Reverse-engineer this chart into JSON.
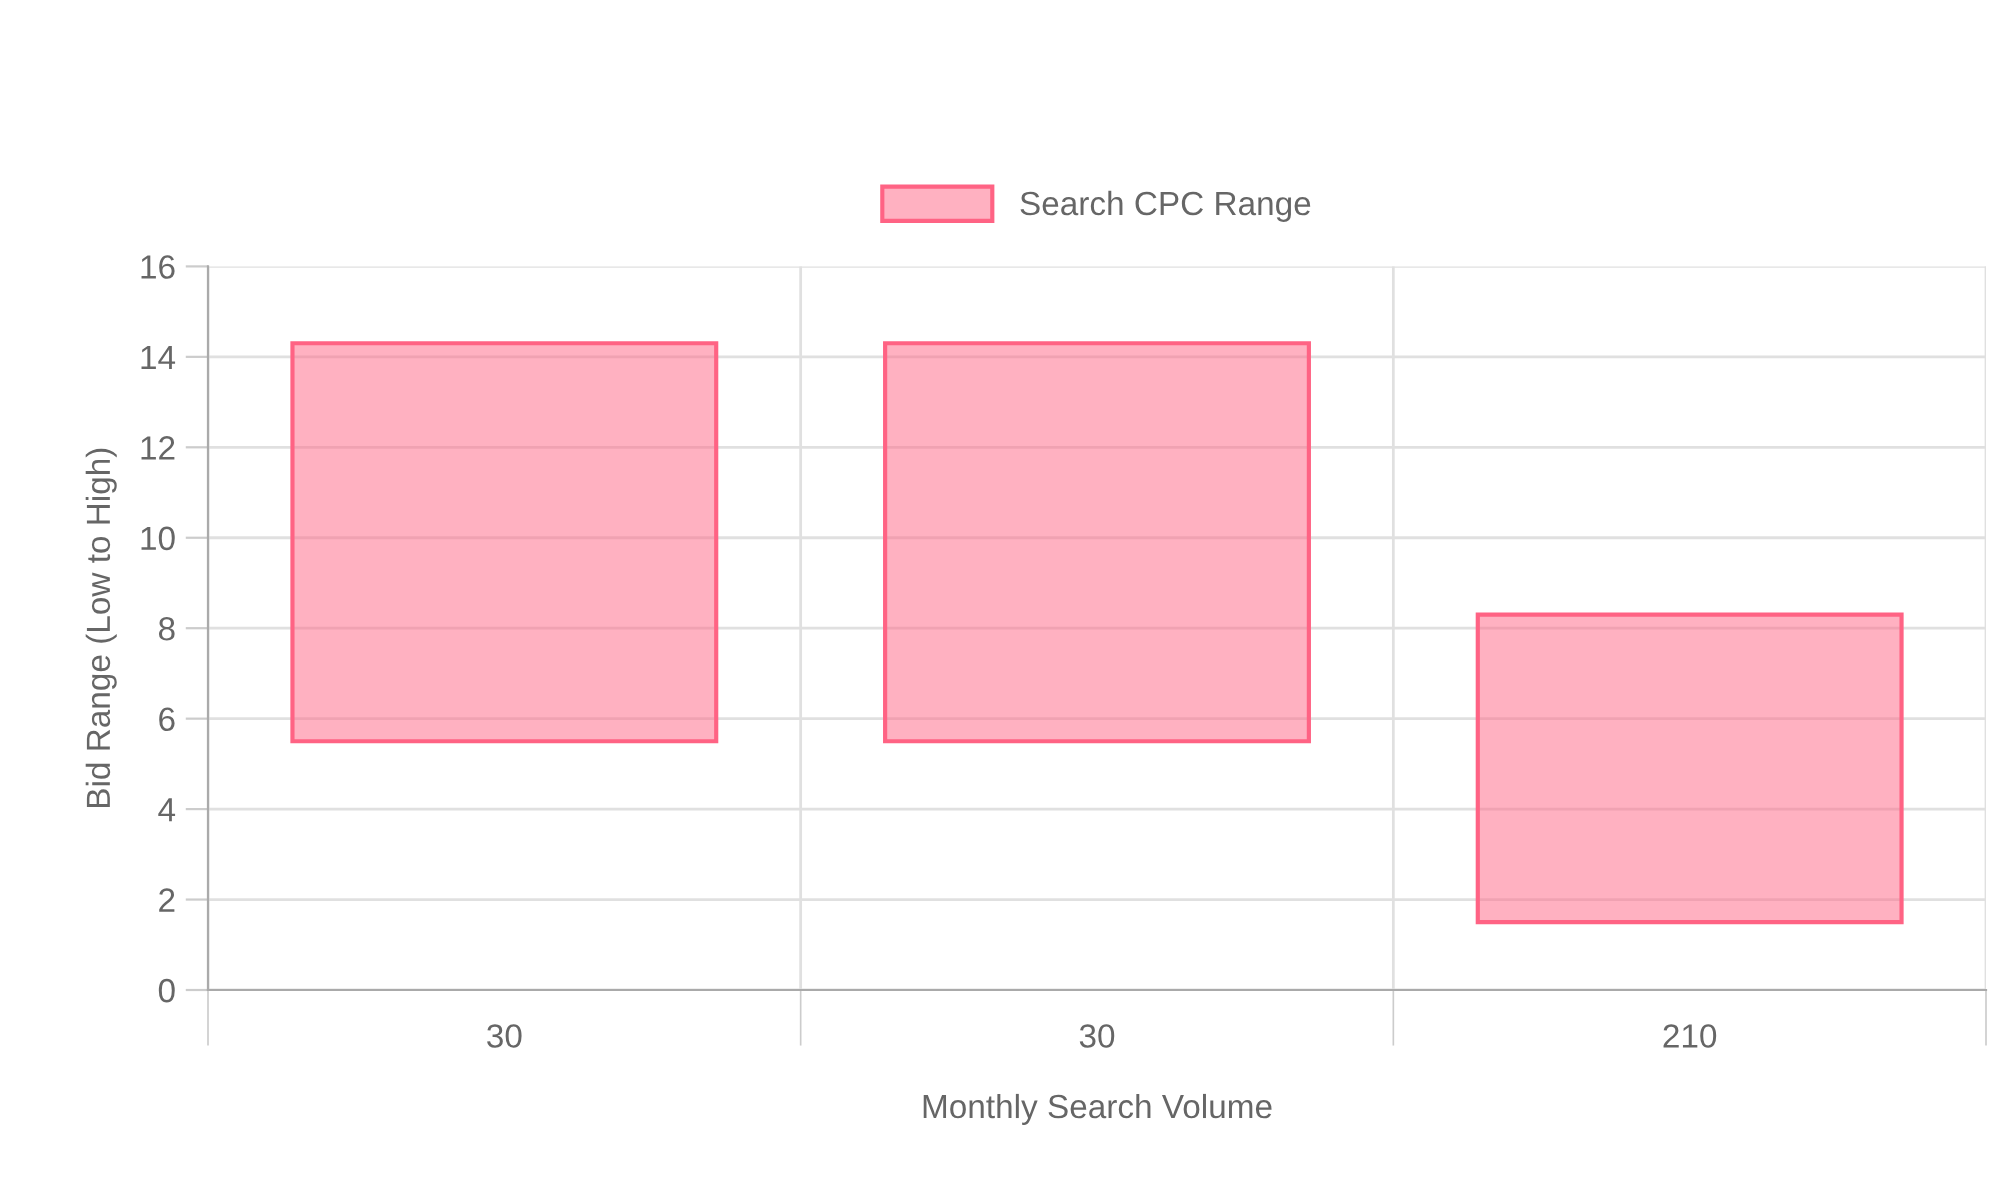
{
  "chart_data": {
    "type": "bar",
    "xlabel": "Monthly Search Volume",
    "ylabel": "Bid Range (Low to High)",
    "categories": [
      "30",
      "30",
      "210"
    ],
    "series": [
      {
        "name": "Search CPC Range",
        "color": "#ff6384",
        "values": [
          8.8,
          8.8,
          6.8
        ],
        "base": [
          5.5,
          5.5,
          1.5
        ]
      }
    ],
    "ylim": [
      0,
      16
    ],
    "yticks": [
      0,
      2,
      4,
      6,
      8,
      10,
      12,
      14,
      16
    ],
    "grid": true,
    "legend": "top"
  }
}
